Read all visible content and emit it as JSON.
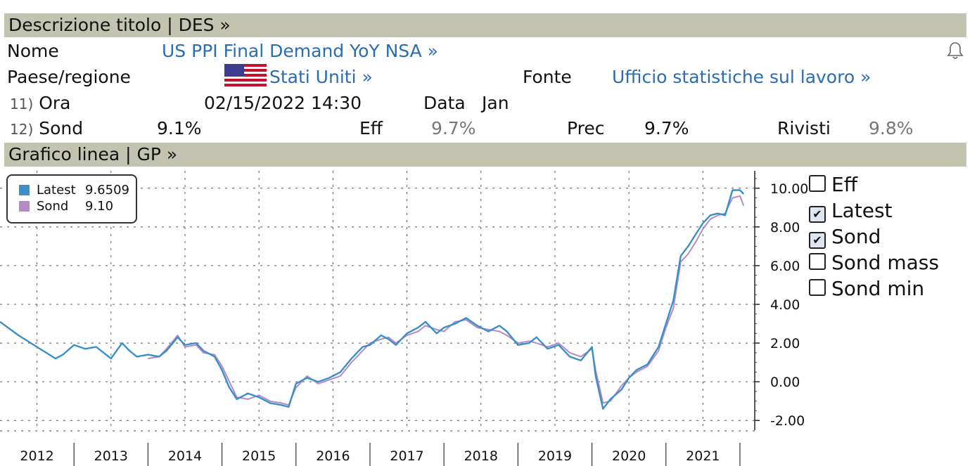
{
  "header1": {
    "label": "Descrizione titolo | DES  »"
  },
  "info": {
    "nome_label": "Nome",
    "nome_value": "US PPI Final Demand YoY NSA »",
    "paese_label": "Paese/regione",
    "paese_value": "Stati Uniti »",
    "fonte_label": "Fonte",
    "fonte_value": "Ufficio statistiche sul lavoro »",
    "ora_num": "11)",
    "ora_label": "Ora",
    "ora_value": "02/15/2022 14:30",
    "data_label": "Data",
    "data_value": "Jan",
    "sond_num": "12)",
    "sond_label": "Sond",
    "sond_value": "9.1%",
    "eff_label": "Eff",
    "eff_value": "9.7%",
    "prec_label": "Prec",
    "prec_value": "9.7%",
    "rivisti_label": "Rivisti",
    "rivisti_value": "9.8%"
  },
  "header2": {
    "label": "Grafico linea | GP »"
  },
  "icons": {
    "bell": "bell-icon",
    "flag": "us-flag-icon"
  },
  "colors": {
    "latest": "#3a8fc9",
    "sond": "#b48ac4",
    "header": "#c3c3b2",
    "link": "#2a6db2"
  },
  "legend": {
    "items": [
      {
        "name": "Latest",
        "value": "9.6509",
        "color": "#3a8fc9"
      },
      {
        "name": "Sond",
        "value": "9.10",
        "color": "#b48ac4"
      }
    ]
  },
  "checkboxes": [
    {
      "label": "Eff",
      "checked": false
    },
    {
      "label": "Latest",
      "checked": true
    },
    {
      "label": "Sond",
      "checked": true
    },
    {
      "label": "Sond mass",
      "checked": false
    },
    {
      "label": "Sond min",
      "checked": false
    }
  ],
  "chart_data": {
    "type": "line",
    "x_years": [
      "2012",
      "2013",
      "2014",
      "2015",
      "2016",
      "2017",
      "2018",
      "2019",
      "2020",
      "2021"
    ],
    "y_ticks": [
      "10.00",
      "8.00",
      "6.00",
      "4.00",
      "2.00",
      "0.00",
      "-2.00"
    ],
    "ylim": [
      -2.5,
      10.9
    ],
    "xlim": [
      2012.0,
      2022.2
    ],
    "grid": true,
    "legend_position": "top-left",
    "series": [
      {
        "name": "Latest",
        "x": [
          2012.0,
          2012.25,
          2012.5,
          2012.75,
          2012.85,
          2013.0,
          2013.15,
          2013.3,
          2013.5,
          2013.65,
          2013.75,
          2013.85,
          2014.0,
          2014.15,
          2014.25,
          2014.4,
          2014.5,
          2014.65,
          2014.75,
          2014.9,
          2015.0,
          2015.1,
          2015.2,
          2015.35,
          2015.5,
          2015.65,
          2015.8,
          2015.9,
          2016.0,
          2016.15,
          2016.3,
          2016.45,
          2016.6,
          2016.75,
          2016.9,
          2017.0,
          2017.15,
          2017.25,
          2017.35,
          2017.5,
          2017.65,
          2017.75,
          2017.9,
          2018.0,
          2018.15,
          2018.3,
          2018.45,
          2018.6,
          2018.75,
          2018.85,
          2019.0,
          2019.15,
          2019.25,
          2019.4,
          2019.55,
          2019.7,
          2019.85,
          2020.0,
          2020.05,
          2020.15,
          2020.25,
          2020.4,
          2020.5,
          2020.6,
          2020.75,
          2020.9,
          2021.0,
          2021.1,
          2021.2,
          2021.3,
          2021.4,
          2021.5,
          2021.6,
          2021.7,
          2021.8,
          2021.9,
          2022.0,
          2022.05
        ],
        "y": [
          3.1,
          2.4,
          1.8,
          1.2,
          1.4,
          1.9,
          1.7,
          1.8,
          1.2,
          2.0,
          1.6,
          1.3,
          1.4,
          1.3,
          1.6,
          2.3,
          1.9,
          2.0,
          1.6,
          1.3,
          0.6,
          -0.3,
          -0.9,
          -0.6,
          -0.8,
          -1.1,
          -1.2,
          -1.3,
          -0.1,
          0.2,
          0.0,
          0.2,
          0.5,
          1.2,
          1.8,
          1.9,
          2.4,
          2.2,
          1.9,
          2.5,
          2.8,
          3.1,
          2.5,
          2.8,
          3.0,
          3.3,
          2.9,
          2.6,
          2.9,
          2.6,
          1.9,
          2.0,
          2.3,
          1.7,
          1.9,
          1.3,
          1.1,
          1.8,
          0.3,
          -1.4,
          -0.9,
          -0.4,
          0.2,
          0.6,
          0.9,
          1.8,
          3.0,
          4.2,
          6.5,
          7.0,
          7.6,
          8.2,
          8.6,
          8.7,
          8.6,
          9.9,
          9.9,
          9.7
        ]
      },
      {
        "name": "Sond",
        "x": [
          2014.0,
          2014.15,
          2014.25,
          2014.4,
          2014.5,
          2014.65,
          2014.75,
          2014.9,
          2015.0,
          2015.1,
          2015.2,
          2015.35,
          2015.5,
          2015.65,
          2015.8,
          2015.9,
          2016.0,
          2016.15,
          2016.3,
          2016.45,
          2016.6,
          2016.75,
          2016.9,
          2017.0,
          2017.15,
          2017.25,
          2017.35,
          2017.5,
          2017.65,
          2017.75,
          2017.9,
          2018.0,
          2018.15,
          2018.3,
          2018.45,
          2018.6,
          2018.75,
          2018.85,
          2019.0,
          2019.15,
          2019.25,
          2019.4,
          2019.55,
          2019.7,
          2019.85,
          2020.0,
          2020.05,
          2020.15,
          2020.25,
          2020.4,
          2020.5,
          2020.6,
          2020.75,
          2020.9,
          2021.0,
          2021.1,
          2021.2,
          2021.3,
          2021.4,
          2021.5,
          2021.6,
          2021.7,
          2021.8,
          2021.9,
          2022.0,
          2022.05
        ],
        "y": [
          1.2,
          1.3,
          1.7,
          2.4,
          1.8,
          1.9,
          1.5,
          1.4,
          0.8,
          0.0,
          -0.8,
          -0.9,
          -0.7,
          -1.0,
          -1.1,
          -1.2,
          -0.3,
          0.3,
          -0.1,
          0.1,
          0.3,
          1.0,
          1.6,
          2.0,
          2.2,
          2.3,
          2.0,
          2.4,
          2.6,
          2.9,
          2.7,
          2.6,
          3.1,
          3.2,
          2.8,
          2.7,
          2.6,
          2.4,
          2.0,
          2.1,
          2.0,
          1.8,
          2.0,
          1.5,
          1.3,
          1.7,
          0.6,
          -1.1,
          -1.0,
          -0.2,
          0.2,
          0.5,
          0.8,
          1.6,
          2.8,
          3.8,
          6.2,
          6.6,
          7.2,
          7.9,
          8.4,
          8.6,
          8.7,
          9.5,
          9.6,
          9.1
        ]
      }
    ]
  }
}
